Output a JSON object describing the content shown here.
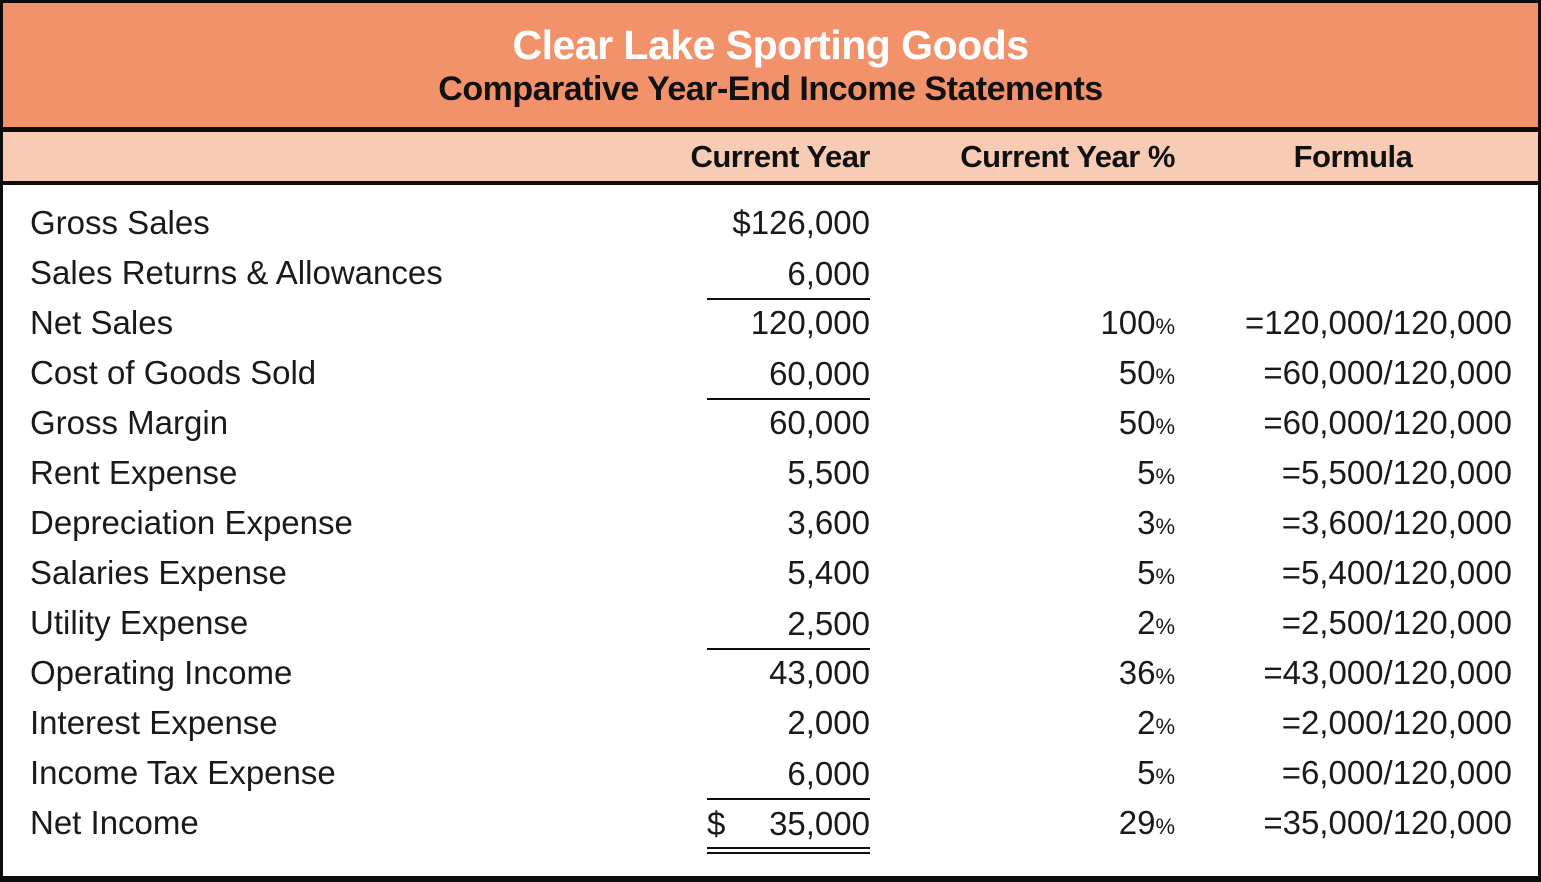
{
  "header": {
    "title": "Clear Lake Sporting Goods",
    "subtitle": "Comparative Year-End Income Statements"
  },
  "columns": {
    "label": "",
    "current_year": "Current Year",
    "current_year_pct": "Current Year %",
    "formula": "Formula"
  },
  "percent_symbol": "%",
  "rows": [
    {
      "label": "Gross Sales",
      "currency": "",
      "value": "$126,000",
      "pct": "",
      "formula": "",
      "rule": "none"
    },
    {
      "label": "Sales Returns & Allowances",
      "currency": "",
      "value": "6,000",
      "pct": "",
      "formula": "",
      "rule": "single"
    },
    {
      "label": "Net Sales",
      "currency": "",
      "value": "120,000",
      "pct": "100",
      "formula": "=120,000/120,000",
      "rule": "none"
    },
    {
      "label": "Cost of Goods Sold",
      "currency": "",
      "value": "60,000",
      "pct": "50",
      "formula": "=60,000/120,000",
      "rule": "single"
    },
    {
      "label": "Gross Margin",
      "currency": "",
      "value": "60,000",
      "pct": "50",
      "formula": "=60,000/120,000",
      "rule": "none"
    },
    {
      "label": "Rent Expense",
      "currency": "",
      "value": "5,500",
      "pct": "5",
      "formula": "=5,500/120,000",
      "rule": "none"
    },
    {
      "label": "Depreciation Expense",
      "currency": "",
      "value": "3,600",
      "pct": "3",
      "formula": "=3,600/120,000",
      "rule": "none"
    },
    {
      "label": "Salaries Expense",
      "currency": "",
      "value": "5,400",
      "pct": "5",
      "formula": "=5,400/120,000",
      "rule": "none"
    },
    {
      "label": "Utility Expense",
      "currency": "",
      "value": "2,500",
      "pct": "2",
      "formula": "=2,500/120,000",
      "rule": "single"
    },
    {
      "label": "Operating Income",
      "currency": "",
      "value": "43,000",
      "pct": "36",
      "formula": "=43,000/120,000",
      "rule": "none"
    },
    {
      "label": "Interest Expense",
      "currency": "",
      "value": "2,000",
      "pct": "2",
      "formula": "=2,000/120,000",
      "rule": "none"
    },
    {
      "label": "Income Tax Expense",
      "currency": "",
      "value": "6,000",
      "pct": "5",
      "formula": "=6,000/120,000",
      "rule": "single"
    },
    {
      "label": "Net Income",
      "currency": "$",
      "value": "35,000",
      "pct": "29",
      "formula": "=35,000/120,000",
      "rule": "double"
    }
  ],
  "colors": {
    "header_bg": "#F2926B",
    "subheader_bg": "#F8CBB4",
    "border": "#0D0D0D",
    "title_text": "#FFFFFF",
    "body_text": "#1A1A1A"
  },
  "chart_data": {
    "type": "table",
    "title": "Clear Lake Sporting Goods",
    "subtitle": "Comparative Year-End Income Statements",
    "columns": [
      "",
      "Current Year",
      "Current Year %",
      "Formula"
    ],
    "rows": [
      [
        "Gross Sales",
        "$126,000",
        "",
        ""
      ],
      [
        "Sales Returns & Allowances",
        "6,000",
        "",
        ""
      ],
      [
        "Net Sales",
        "120,000",
        "100%",
        "=120,000/120,000"
      ],
      [
        "Cost of Goods Sold",
        "60,000",
        "50%",
        "=60,000/120,000"
      ],
      [
        "Gross Margin",
        "60,000",
        "50%",
        "=60,000/120,000"
      ],
      [
        "Rent Expense",
        "5,500",
        "5%",
        "=5,500/120,000"
      ],
      [
        "Depreciation Expense",
        "3,600",
        "3%",
        "=3,600/120,000"
      ],
      [
        "Salaries Expense",
        "5,400",
        "5%",
        "=5,400/120,000"
      ],
      [
        "Utility Expense",
        "2,500",
        "2%",
        "=2,500/120,000"
      ],
      [
        "Operating Income",
        "43,000",
        "36%",
        "=43,000/120,000"
      ],
      [
        "Interest Expense",
        "2,000",
        "2%",
        "=2,000/120,000"
      ],
      [
        "Income Tax Expense",
        "6,000",
        "5%",
        "=6,000/120,000"
      ],
      [
        "Net Income",
        "$ 35,000",
        "29%",
        "=35,000/120,000"
      ]
    ],
    "numeric_values": {
      "gross_sales": 126000,
      "sales_returns_allowances": 6000,
      "net_sales": 120000,
      "cost_of_goods_sold": 60000,
      "gross_margin": 60000,
      "rent_expense": 5500,
      "depreciation_expense": 3600,
      "salaries_expense": 5400,
      "utility_expense": 2500,
      "operating_income": 43000,
      "interest_expense": 2000,
      "income_tax_expense": 6000,
      "net_income": 35000
    },
    "percent_of_net_sales": {
      "net_sales": 100,
      "cost_of_goods_sold": 50,
      "gross_margin": 50,
      "rent_expense": 5,
      "depreciation_expense": 3,
      "salaries_expense": 5,
      "utility_expense": 2,
      "operating_income": 36,
      "interest_expense": 2,
      "income_tax_expense": 5,
      "net_income": 29
    }
  }
}
